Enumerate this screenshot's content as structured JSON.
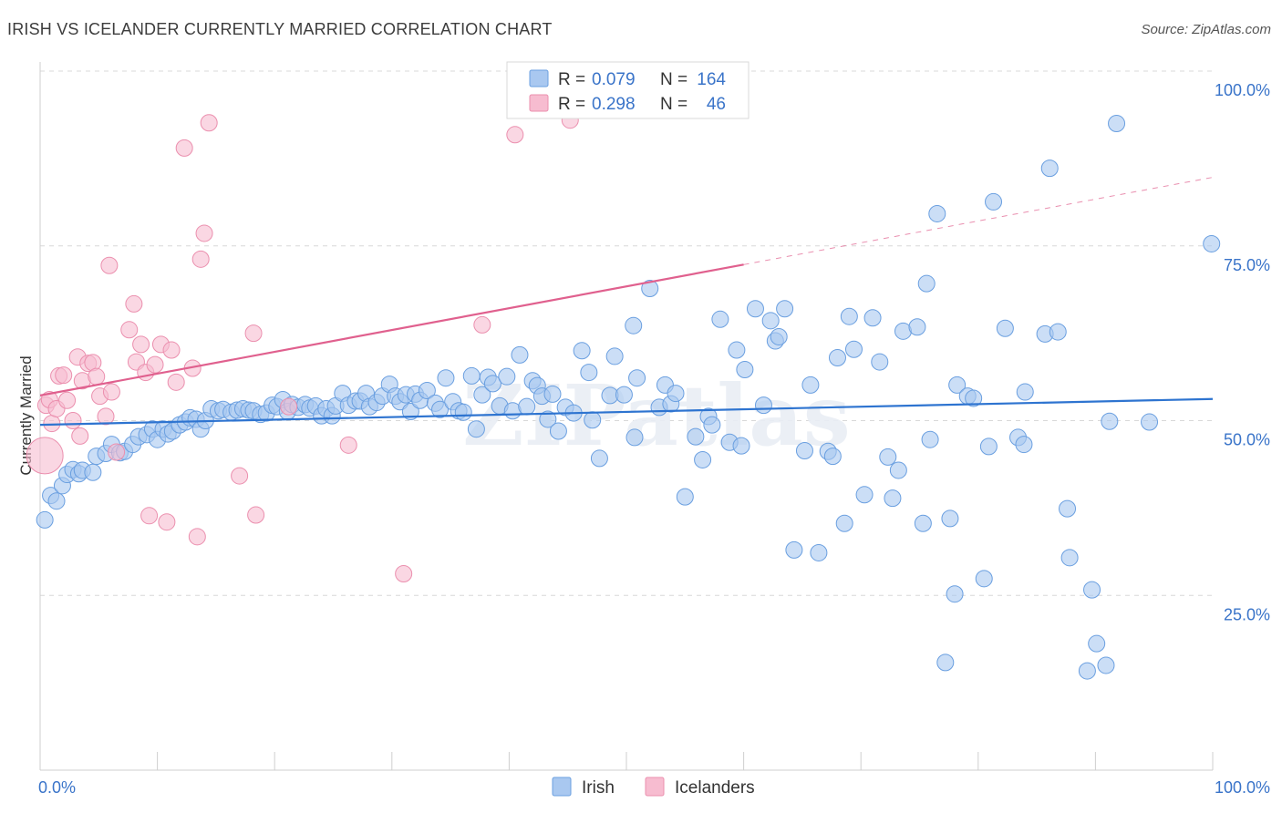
{
  "title": "IRISH VS ICELANDER CURRENTLY MARRIED CORRELATION CHART",
  "source": "Source: ZipAtlas.com",
  "watermark": "ZIPatlas",
  "colors": {
    "irish_fill": "#a9c8f0",
    "irish_stroke": "#6a9fe0",
    "irish_line": "#2e74d0",
    "icelander_fill": "#f7bcd0",
    "icelander_stroke": "#eb8fae",
    "icelander_line": "#e0608e",
    "tick_label": "#3a74c9",
    "grid": "#d8d8d8"
  },
  "legend_top": {
    "rows": [
      {
        "r_label": "R = ",
        "r_value": "0.079",
        "n_label": "N = ",
        "n_value": "164"
      },
      {
        "r_label": "R = ",
        "r_value": "0.298",
        "n_label": "N = ",
        "n_value": "46"
      }
    ]
  },
  "legend_bottom": [
    "Irish",
    "Icelanders"
  ],
  "chart_data": {
    "type": "scatter",
    "xlabel": "",
    "ylabel": "Currently Married",
    "xlim": [
      0,
      100
    ],
    "ylim": [
      0,
      100
    ],
    "x_tick_labels": [
      "0.0%",
      "100.0%"
    ],
    "y_tick_labels": [
      "25.0%",
      "50.0%",
      "75.0%",
      "100.0%"
    ],
    "y_ticks": [
      25,
      50,
      75,
      100
    ],
    "grid": true,
    "legend_position": "bottom",
    "series": [
      {
        "name": "Irish",
        "trend": {
          "x": [
            0,
            100
          ],
          "y": [
            49.4,
            53.1
          ],
          "dashed_from": null
        },
        "points": [
          [
            0.4,
            35.8
          ],
          [
            0.9,
            39.3
          ],
          [
            1.4,
            38.5
          ],
          [
            1.9,
            40.7
          ],
          [
            2.3,
            42.3
          ],
          [
            2.8,
            43.0
          ],
          [
            3.3,
            42.4
          ],
          [
            3.6,
            42.9
          ],
          [
            4.5,
            42.6
          ],
          [
            4.8,
            44.9
          ],
          [
            5.6,
            45.3
          ],
          [
            6.1,
            46.6
          ],
          [
            6.8,
            45.4
          ],
          [
            7.2,
            45.6
          ],
          [
            7.9,
            46.6
          ],
          [
            8.4,
            47.7
          ],
          [
            9.1,
            48.0
          ],
          [
            9.6,
            48.8
          ],
          [
            10.0,
            47.3
          ],
          [
            10.5,
            48.8
          ],
          [
            10.9,
            48.1
          ],
          [
            11.3,
            48.5
          ],
          [
            11.9,
            49.4
          ],
          [
            12.4,
            49.8
          ],
          [
            12.8,
            50.4
          ],
          [
            13.3,
            50.2
          ],
          [
            13.7,
            48.8
          ],
          [
            14.1,
            50.0
          ],
          [
            14.6,
            51.7
          ],
          [
            15.2,
            51.4
          ],
          [
            15.6,
            51.6
          ],
          [
            16.3,
            51.2
          ],
          [
            16.8,
            51.5
          ],
          [
            17.3,
            51.7
          ],
          [
            17.8,
            51.5
          ],
          [
            18.2,
            51.4
          ],
          [
            18.8,
            50.9
          ],
          [
            19.3,
            51.1
          ],
          [
            19.8,
            52.2
          ],
          [
            20.2,
            52.0
          ],
          [
            20.7,
            53.0
          ],
          [
            21.1,
            51.3
          ],
          [
            21.5,
            52.3
          ],
          [
            22.0,
            51.9
          ],
          [
            22.6,
            52.3
          ],
          [
            23.0,
            51.8
          ],
          [
            23.5,
            52.1
          ],
          [
            24.0,
            50.7
          ],
          [
            24.4,
            51.7
          ],
          [
            24.9,
            50.7
          ],
          [
            25.2,
            52.1
          ],
          [
            25.8,
            53.9
          ],
          [
            26.3,
            52.2
          ],
          [
            26.9,
            52.8
          ],
          [
            27.3,
            52.8
          ],
          [
            27.8,
            53.9
          ],
          [
            28.1,
            52.0
          ],
          [
            28.7,
            52.6
          ],
          [
            29.2,
            53.5
          ],
          [
            29.8,
            55.2
          ],
          [
            30.3,
            53.5
          ],
          [
            30.7,
            52.7
          ],
          [
            31.2,
            53.7
          ],
          [
            31.6,
            51.3
          ],
          [
            32.0,
            53.8
          ],
          [
            32.4,
            52.9
          ],
          [
            33.0,
            54.3
          ],
          [
            33.7,
            52.5
          ],
          [
            34.1,
            51.6
          ],
          [
            34.6,
            56.1
          ],
          [
            35.2,
            52.7
          ],
          [
            35.7,
            51.4
          ],
          [
            36.1,
            51.2
          ],
          [
            36.8,
            56.4
          ],
          [
            37.2,
            48.8
          ],
          [
            37.7,
            53.7
          ],
          [
            38.2,
            56.2
          ],
          [
            38.6,
            55.3
          ],
          [
            39.2,
            52.1
          ],
          [
            39.8,
            56.3
          ],
          [
            40.3,
            51.4
          ],
          [
            40.9,
            59.4
          ],
          [
            41.5,
            52.0
          ],
          [
            42.0,
            55.7
          ],
          [
            42.4,
            55.0
          ],
          [
            42.8,
            53.5
          ],
          [
            43.3,
            50.2
          ],
          [
            43.7,
            53.8
          ],
          [
            44.2,
            48.5
          ],
          [
            44.8,
            51.9
          ],
          [
            45.5,
            51.1
          ],
          [
            46.2,
            60.0
          ],
          [
            46.8,
            56.9
          ],
          [
            47.1,
            50.1
          ],
          [
            47.7,
            44.6
          ],
          [
            48.6,
            53.6
          ],
          [
            49.0,
            59.2
          ],
          [
            49.8,
            53.7
          ],
          [
            50.7,
            47.6
          ],
          [
            50.6,
            63.6
          ],
          [
            50.9,
            56.1
          ],
          [
            52.0,
            68.9
          ],
          [
            52.8,
            51.9
          ],
          [
            53.3,
            55.1
          ],
          [
            53.8,
            52.4
          ],
          [
            54.2,
            53.9
          ],
          [
            55.0,
            39.1
          ],
          [
            55.9,
            47.7
          ],
          [
            56.5,
            44.4
          ],
          [
            57.0,
            50.6
          ],
          [
            57.3,
            49.4
          ],
          [
            58.0,
            64.5
          ],
          [
            58.8,
            46.9
          ],
          [
            59.4,
            60.1
          ],
          [
            59.8,
            46.4
          ],
          [
            60.1,
            57.3
          ],
          [
            61.0,
            66.0
          ],
          [
            61.7,
            52.2
          ],
          [
            62.3,
            64.3
          ],
          [
            62.7,
            61.4
          ],
          [
            63.0,
            62.0
          ],
          [
            63.5,
            66.0
          ],
          [
            64.3,
            31.5
          ],
          [
            65.2,
            45.7
          ],
          [
            65.7,
            55.1
          ],
          [
            66.4,
            31.1
          ],
          [
            67.2,
            45.6
          ],
          [
            67.6,
            44.9
          ],
          [
            68.0,
            59.0
          ],
          [
            68.6,
            35.3
          ],
          [
            69.0,
            64.9
          ],
          [
            69.4,
            60.2
          ],
          [
            70.3,
            39.4
          ],
          [
            71.0,
            64.7
          ],
          [
            71.6,
            58.4
          ],
          [
            72.3,
            44.8
          ],
          [
            72.7,
            38.9
          ],
          [
            73.2,
            42.9
          ],
          [
            73.6,
            62.8
          ],
          [
            74.8,
            63.4
          ],
          [
            75.3,
            35.3
          ],
          [
            75.6,
            69.6
          ],
          [
            75.9,
            47.3
          ],
          [
            76.5,
            79.6
          ],
          [
            77.2,
            15.4
          ],
          [
            77.6,
            36.0
          ],
          [
            78.0,
            25.2
          ],
          [
            78.2,
            55.1
          ],
          [
            79.1,
            53.5
          ],
          [
            79.6,
            53.2
          ],
          [
            80.5,
            27.4
          ],
          [
            80.9,
            46.3
          ],
          [
            81.3,
            81.3
          ],
          [
            82.3,
            63.2
          ],
          [
            83.4,
            47.6
          ],
          [
            83.9,
            46.6
          ],
          [
            84.0,
            54.1
          ],
          [
            85.7,
            62.4
          ],
          [
            86.1,
            86.1
          ],
          [
            86.8,
            62.7
          ],
          [
            87.6,
            37.4
          ],
          [
            87.8,
            30.4
          ],
          [
            89.3,
            14.2
          ],
          [
            89.7,
            25.8
          ],
          [
            90.1,
            18.1
          ],
          [
            90.9,
            15.0
          ],
          [
            91.8,
            92.5
          ],
          [
            91.2,
            49.9
          ],
          [
            94.6,
            49.8
          ],
          [
            99.9,
            75.3
          ]
        ]
      },
      {
        "name": "Icelanders",
        "trend": {
          "x": [
            0,
            100
          ],
          "y": [
            53.6,
            84.8
          ],
          "dashed_from": 60.0
        },
        "points": [
          [
            0.4,
            45.0
          ],
          [
            0.5,
            52.2
          ],
          [
            0.8,
            53.0
          ],
          [
            1.0,
            49.6
          ],
          [
            1.4,
            51.7
          ],
          [
            1.6,
            56.4
          ],
          [
            2.0,
            56.5
          ],
          [
            2.3,
            52.9
          ],
          [
            2.8,
            50.0
          ],
          [
            3.2,
            59.1
          ],
          [
            3.4,
            47.8
          ],
          [
            3.6,
            55.7
          ],
          [
            4.1,
            58.2
          ],
          [
            4.5,
            58.3
          ],
          [
            4.8,
            56.3
          ],
          [
            5.1,
            53.5
          ],
          [
            5.6,
            50.6
          ],
          [
            5.9,
            72.2
          ],
          [
            6.1,
            54.1
          ],
          [
            6.5,
            45.5
          ],
          [
            7.6,
            63.0
          ],
          [
            8.0,
            66.7
          ],
          [
            8.2,
            58.4
          ],
          [
            8.6,
            60.9
          ],
          [
            9.0,
            56.9
          ],
          [
            9.3,
            36.4
          ],
          [
            9.8,
            58.0
          ],
          [
            10.3,
            60.9
          ],
          [
            10.8,
            35.5
          ],
          [
            11.2,
            60.1
          ],
          [
            11.6,
            55.5
          ],
          [
            12.3,
            89.0
          ],
          [
            13.0,
            57.5
          ],
          [
            13.4,
            33.4
          ],
          [
            13.7,
            73.1
          ],
          [
            14.0,
            76.8
          ],
          [
            14.4,
            92.6
          ],
          [
            17.0,
            42.1
          ],
          [
            18.4,
            36.5
          ],
          [
            18.2,
            62.5
          ],
          [
            21.2,
            52.0
          ],
          [
            26.3,
            46.5
          ],
          [
            31.0,
            28.1
          ],
          [
            37.7,
            63.7
          ],
          [
            40.5,
            90.9
          ],
          [
            45.2,
            93.0
          ]
        ]
      }
    ]
  }
}
